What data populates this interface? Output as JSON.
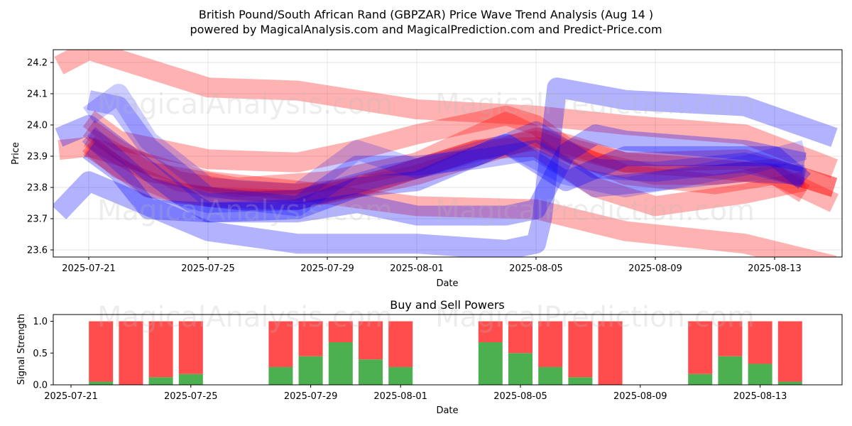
{
  "header": {
    "title_line1": "British Pound/South African Rand (GBPZAR) Price Wave Trend Analysis (Aug 14 )",
    "title_line2": "powered by MagicalAnalysis.com and MagicalPrediction.com and Predict-Price.com"
  },
  "watermarks": [
    "MagicalAnalysis.com",
    "MagicalPrediction.com"
  ],
  "chart_data": [
    {
      "type": "line",
      "xlabel": "Date",
      "ylabel": "Price",
      "x_ticks": [
        "2025-07-21",
        "2025-07-25",
        "2025-07-29",
        "2025-08-01",
        "2025-08-05",
        "2025-08-09",
        "2025-08-13"
      ],
      "y_ticks": [
        "23.6",
        "23.7",
        "23.8",
        "23.9",
        "24.0",
        "24.1",
        "24.2"
      ],
      "xlim": [
        "2025-07-20",
        "2025-08-15"
      ],
      "ylim": [
        23.57,
        24.24
      ],
      "grid": true,
      "colors": {
        "sell": "#ff0000",
        "buy": "#0000ff"
      },
      "series": [
        {
          "color": "red",
          "opacity": 0.3,
          "x": [
            "2025-07-20",
            "2025-07-21",
            "2025-07-25",
            "2025-07-28",
            "2025-08-01",
            "2025-08-05",
            "2025-08-08",
            "2025-08-12",
            "2025-08-15"
          ],
          "y": [
            24.19,
            24.24,
            24.12,
            24.11,
            24.05,
            24.03,
            24.0,
            23.97,
            23.86
          ]
        },
        {
          "color": "red",
          "opacity": 0.3,
          "x": [
            "2025-07-20",
            "2025-07-21",
            "2025-07-25",
            "2025-07-28",
            "2025-08-01",
            "2025-08-05",
            "2025-08-08",
            "2025-08-12",
            "2025-08-15"
          ],
          "y": [
            23.92,
            23.93,
            23.82,
            23.79,
            23.74,
            23.73,
            23.66,
            23.62,
            23.55
          ]
        },
        {
          "color": "red",
          "opacity": 0.3,
          "x": [
            "2025-07-21",
            "2025-07-22",
            "2025-07-25",
            "2025-07-28",
            "2025-07-30",
            "2025-08-01",
            "2025-08-04",
            "2025-08-05",
            "2025-08-06",
            "2025-08-08",
            "2025-08-12",
            "2025-08-15"
          ],
          "y": [
            24.02,
            23.95,
            23.89,
            23.88,
            23.92,
            23.97,
            24.03,
            24.0,
            23.93,
            23.88,
            23.89,
            23.8
          ]
        },
        {
          "color": "red",
          "opacity": 0.3,
          "x": [
            "2025-07-21",
            "2025-07-22",
            "2025-07-24",
            "2025-07-26",
            "2025-07-28",
            "2025-07-30",
            "2025-08-01",
            "2025-08-03",
            "2025-08-05",
            "2025-08-07",
            "2025-08-09",
            "2025-08-11",
            "2025-08-13",
            "2025-08-15"
          ],
          "y": [
            23.99,
            23.92,
            23.82,
            23.79,
            23.78,
            23.8,
            23.86,
            23.92,
            23.95,
            23.88,
            23.84,
            23.84,
            23.86,
            23.8
          ]
        },
        {
          "color": "red",
          "opacity": 0.3,
          "x": [
            "2025-07-21",
            "2025-07-22",
            "2025-07-24",
            "2025-07-26",
            "2025-07-28",
            "2025-07-30",
            "2025-08-01",
            "2025-08-03",
            "2025-08-05",
            "2025-08-06",
            "2025-08-08",
            "2025-08-11",
            "2025-08-13",
            "2025-08-14"
          ],
          "y": [
            23.94,
            23.86,
            23.78,
            23.76,
            23.76,
            23.8,
            23.84,
            23.9,
            23.96,
            23.94,
            23.88,
            23.86,
            23.84,
            23.78
          ]
        },
        {
          "color": "red",
          "opacity": 0.3,
          "x": [
            "2025-07-21",
            "2025-07-23",
            "2025-07-25",
            "2025-07-28",
            "2025-07-31",
            "2025-08-03",
            "2025-08-05",
            "2025-08-07",
            "2025-08-09",
            "2025-08-12",
            "2025-08-14"
          ],
          "y": [
            23.93,
            23.8,
            23.77,
            23.76,
            23.83,
            23.92,
            23.93,
            23.8,
            23.74,
            23.78,
            23.82
          ]
        },
        {
          "color": "red",
          "opacity": 0.3,
          "x": [
            "2025-07-21",
            "2025-07-23",
            "2025-07-26",
            "2025-07-29",
            "2025-08-01",
            "2025-08-04",
            "2025-08-06",
            "2025-08-08",
            "2025-08-11",
            "2025-08-13",
            "2025-08-15"
          ],
          "y": [
            23.96,
            23.85,
            23.8,
            23.82,
            23.88,
            24.01,
            23.92,
            23.84,
            23.81,
            23.84,
            23.75
          ]
        },
        {
          "color": "blue",
          "opacity": 0.3,
          "x": [
            "2025-07-20",
            "2025-07-21",
            "2025-07-25",
            "2025-07-28",
            "2025-08-01",
            "2025-08-04",
            "2025-08-05",
            "2025-08-05.2",
            "2025-08-05.7",
            "2025-08-08",
            "2025-08-12",
            "2025-08-15"
          ],
          "y": [
            23.72,
            23.82,
            23.66,
            23.62,
            23.62,
            23.6,
            23.62,
            23.7,
            24.12,
            24.08,
            24.06,
            23.96
          ]
        },
        {
          "color": "blue",
          "opacity": 0.3,
          "x": [
            "2025-07-20",
            "2025-07-21",
            "2025-07-24",
            "2025-07-25",
            "2025-07-28",
            "2025-07-30",
            "2025-08-01",
            "2025-08-04",
            "2025-08-05",
            "2025-08-06",
            "2025-08-07",
            "2025-08-08",
            "2025-08-12",
            "2025-08-14"
          ],
          "y": [
            23.96,
            24.0,
            23.78,
            23.72,
            23.72,
            23.75,
            23.71,
            23.71,
            23.73,
            23.91,
            23.97,
            23.95,
            23.92,
            23.88
          ]
        },
        {
          "color": "blue",
          "opacity": 0.3,
          "x": [
            "2025-07-21",
            "2025-07-22",
            "2025-07-23",
            "2025-07-25",
            "2025-07-28",
            "2025-07-30",
            "2025-08-01",
            "2025-08-04",
            "2025-08-06",
            "2025-08-08",
            "2025-08-11",
            "2025-08-13",
            "2025-08-14"
          ],
          "y": [
            23.92,
            23.85,
            23.73,
            23.72,
            23.73,
            23.8,
            23.82,
            23.94,
            23.82,
            23.9,
            23.9,
            23.9,
            23.82
          ]
        },
        {
          "color": "blue",
          "opacity": 0.25,
          "x": [
            "2025-07-21",
            "2025-07-22",
            "2025-07-23",
            "2025-07-25",
            "2025-07-28",
            "2025-07-30",
            "2025-08-01",
            "2025-08-03",
            "2025-08-05",
            "2025-08-07",
            "2025-08-09",
            "2025-08-12",
            "2025-08-14"
          ],
          "y": [
            24.08,
            24.06,
            23.93,
            23.77,
            23.74,
            23.87,
            23.87,
            23.89,
            23.92,
            23.8,
            23.82,
            23.85,
            23.84
          ]
        },
        {
          "color": "blue",
          "opacity": 0.2,
          "x": [
            "2025-07-21",
            "2025-07-22",
            "2025-07-23",
            "2025-07-25",
            "2025-07-28",
            "2025-07-29",
            "2025-07-30",
            "2025-08-01",
            "2025-08-04",
            "2025-08-06",
            "2025-08-08",
            "2025-08-12",
            "2025-08-14"
          ],
          "y": [
            24.03,
            24.1,
            23.95,
            23.8,
            23.78,
            23.85,
            23.92,
            23.86,
            23.94,
            23.84,
            23.8,
            23.87,
            23.92
          ]
        },
        {
          "color": "blue",
          "opacity": 0.25,
          "x": [
            "2025-07-21",
            "2025-07-23",
            "2025-07-25",
            "2025-07-28",
            "2025-07-31",
            "2025-08-03",
            "2025-08-05",
            "2025-08-07",
            "2025-08-09",
            "2025-08-12",
            "2025-08-14"
          ],
          "y": [
            23.97,
            23.8,
            23.75,
            23.76,
            23.84,
            23.9,
            23.98,
            23.86,
            23.85,
            23.88,
            23.83
          ]
        }
      ]
    },
    {
      "type": "bar",
      "title": "Buy and Sell Powers",
      "xlabel": "Date",
      "ylabel": "Signal Strength",
      "x_ticks": [
        "2025-07-21",
        "2025-07-25",
        "2025-07-29",
        "2025-08-01",
        "2025-08-05",
        "2025-08-09",
        "2025-08-13"
      ],
      "y_ticks": [
        "0.0",
        "0.5",
        "1.0"
      ],
      "ylim": [
        0,
        1.05
      ],
      "colors": {
        "buy": "#4caf50",
        "sell": "#ff4d4d"
      },
      "dates": [
        "2025-07-22",
        "2025-07-23",
        "2025-07-24",
        "2025-07-25",
        "2025-07-28",
        "2025-07-29",
        "2025-07-30",
        "2025-07-31",
        "2025-08-01",
        "2025-08-04",
        "2025-08-05",
        "2025-08-06",
        "2025-08-07",
        "2025-08-08",
        "2025-08-11",
        "2025-08-12",
        "2025-08-13",
        "2025-08-14"
      ],
      "buy": [
        0.05,
        0.0,
        0.12,
        0.17,
        0.28,
        0.45,
        0.67,
        0.4,
        0.28,
        0.67,
        0.5,
        0.28,
        0.12,
        0.0,
        0.17,
        0.45,
        0.33,
        0.05
      ],
      "sell": [
        0.95,
        1.0,
        0.88,
        0.83,
        0.72,
        0.55,
        0.33,
        0.6,
        0.72,
        0.33,
        0.5,
        0.72,
        0.88,
        1.0,
        0.83,
        0.55,
        0.67,
        0.95
      ]
    }
  ]
}
